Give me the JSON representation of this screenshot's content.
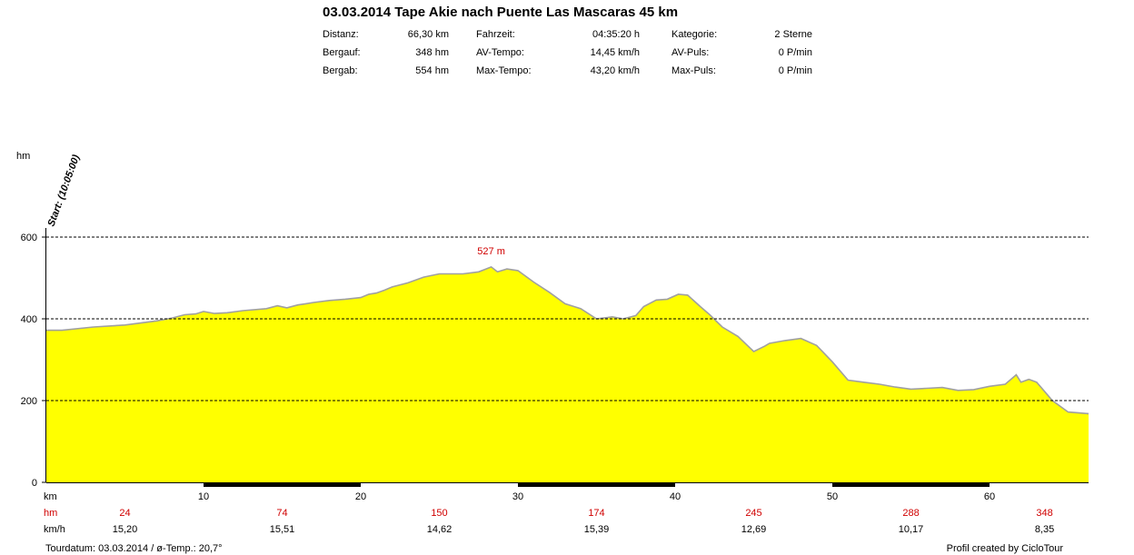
{
  "header": {
    "title": "03.03.2014 Tape Akie nach Puente Las Mascaras 45 km",
    "stats": [
      {
        "label": "Distanz:",
        "value": "66,30 km"
      },
      {
        "label": "Bergauf:",
        "value": "348 hm"
      },
      {
        "label": "Bergab:",
        "value": "554 hm"
      },
      {
        "label": "Fahrzeit:",
        "value": "04:35:20 h"
      },
      {
        "label": "AV-Tempo:",
        "value": "14,45 km/h"
      },
      {
        "label": "Max-Tempo:",
        "value": "43,20 km/h"
      },
      {
        "label": "Kategorie:",
        "value": "2 Sterne"
      },
      {
        "label": "AV-Puls:",
        "value": "0 P/min"
      },
      {
        "label": "Max-Puls:",
        "value": "0 P/min"
      }
    ]
  },
  "chart_data": {
    "type": "area",
    "ylabel": "hm",
    "xlabel": "km",
    "xlim": [
      0,
      66.3
    ],
    "ylim": [
      0,
      600
    ],
    "x_ticks": [
      10,
      20,
      30,
      40,
      50,
      60
    ],
    "y_ticks": [
      0,
      200,
      400,
      600
    ],
    "grid_lines": [
      200,
      400,
      600
    ],
    "start_label": "Start: (10:05:00)",
    "peak_label": "527 m",
    "peak": {
      "x": 28.3,
      "y": 527
    },
    "fill_color": "#ffff00",
    "line_color": "#a0a0a0",
    "x": [
      0,
      1,
      3,
      5,
      7,
      8,
      8.8,
      9.5,
      10,
      10.7,
      11.5,
      12.5,
      14,
      14.7,
      15.3,
      16,
      16.5,
      17,
      18,
      19,
      20,
      20.5,
      21,
      21.5,
      22,
      23,
      24,
      25,
      26.5,
      27.5,
      28.3,
      28.7,
      29.3,
      30,
      31,
      32,
      33,
      34,
      35,
      35.7,
      36,
      36.7,
      37.5,
      38,
      38.8,
      39.5,
      40.2,
      40.8,
      41.6,
      42.2,
      43,
      44,
      45,
      45.7,
      46,
      47,
      48,
      49,
      50,
      51,
      52,
      53,
      54,
      55,
      56,
      57,
      58,
      59,
      60,
      61,
      61.7,
      62,
      62.5,
      63,
      64,
      65,
      66.3
    ],
    "y": [
      372,
      372,
      380,
      385,
      395,
      402,
      410,
      412,
      418,
      413,
      415,
      420,
      425,
      432,
      427,
      434,
      437,
      440,
      445,
      448,
      452,
      460,
      463,
      470,
      478,
      488,
      502,
      510,
      510,
      515,
      527,
      515,
      522,
      518,
      490,
      465,
      437,
      425,
      400,
      403,
      405,
      400,
      408,
      430,
      446,
      448,
      460,
      458,
      430,
      410,
      380,
      357,
      320,
      333,
      340,
      347,
      352,
      335,
      295,
      250,
      245,
      240,
      233,
      228,
      230,
      232,
      225,
      227,
      235,
      240,
      263,
      245,
      252,
      245,
      200,
      172,
      168
    ],
    "rows": [
      {
        "label": "hm",
        "values": [
          "24",
          "74",
          "150",
          "174",
          "245",
          "288",
          "348"
        ]
      },
      {
        "label": "km/h",
        "values": [
          "15,20",
          "15,51",
          "14,62",
          "15,39",
          "12,69",
          "10,17",
          "8,35"
        ]
      }
    ],
    "row_positions_km": [
      5,
      15,
      25,
      35,
      45,
      55,
      63.5
    ]
  },
  "footer": {
    "left": "Tourdatum: 03.03.2014  /  ø-Temp.: 20,7°",
    "right": "Profil created by CicloTour"
  }
}
